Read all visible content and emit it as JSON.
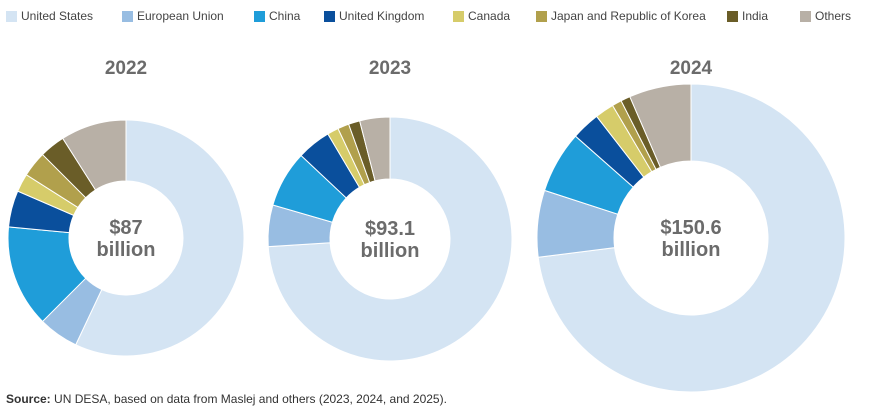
{
  "chart_data": {
    "type": "pie",
    "variant": "donut",
    "categories": [
      "United States",
      "European Union",
      "China",
      "United Kingdom",
      "Canada",
      "Japan and Republic of Korea",
      "India",
      "Others"
    ],
    "colors": [
      "#d4e4f3",
      "#98bde2",
      "#1f9dd9",
      "#0a4f9c",
      "#d6cc6a",
      "#b1a04c",
      "#6a5d28",
      "#b8b0a6"
    ],
    "charts": [
      {
        "year": "2022",
        "total_value": "$87",
        "total_unit": "billion",
        "values": [
          57,
          5.5,
          14,
          5,
          2.5,
          3.5,
          3.5,
          9
        ]
      },
      {
        "year": "2023",
        "total_value": "$93.1",
        "total_unit": "billion",
        "values": [
          74,
          5.5,
          7.5,
          4.5,
          1.5,
          1.5,
          1.5,
          4
        ]
      },
      {
        "year": "2024",
        "total_value": "$150.6",
        "total_unit": "billion",
        "values": [
          73,
          7,
          6.5,
          3,
          2,
          1,
          1,
          6.5
        ]
      }
    ]
  },
  "source": {
    "label": "Source:",
    "text": " UN DESA, based on data from Maslej and others (2023, 2024, and 2025)."
  }
}
